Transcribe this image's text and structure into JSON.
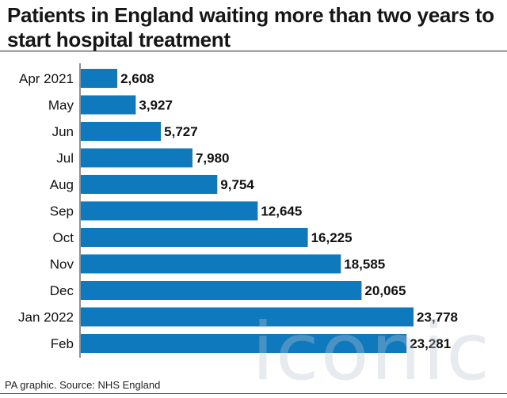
{
  "header": {
    "title": "Patients in England waiting more than two years to start hospital treatment"
  },
  "footer": {
    "source": "PA graphic. Source: NHS England"
  },
  "watermark": {
    "text": "iconic"
  },
  "colors": {
    "bar": "#0f79be",
    "axis": "#222222",
    "text": "#111111"
  },
  "chart_data": {
    "type": "bar",
    "orientation": "horizontal",
    "categories": [
      "Apr 2021",
      "May",
      "Jun",
      "Jul",
      "Aug",
      "Sep",
      "Oct",
      "Nov",
      "Dec",
      "Jan 2022",
      "Feb"
    ],
    "values": [
      2608,
      3927,
      5727,
      7980,
      9754,
      12645,
      16225,
      18585,
      20065,
      23778,
      23281
    ],
    "value_labels": [
      "2,608",
      "3,927",
      "5,727",
      "7,980",
      "9,754",
      "12,645",
      "16,225",
      "18,585",
      "20,065",
      "23,778",
      "23,281"
    ],
    "xlim": [
      0,
      23778
    ],
    "title": "Patients in England waiting more than two years to start hospital treatment",
    "xlabel": "",
    "ylabel": "",
    "grid": false,
    "legend": "none"
  }
}
